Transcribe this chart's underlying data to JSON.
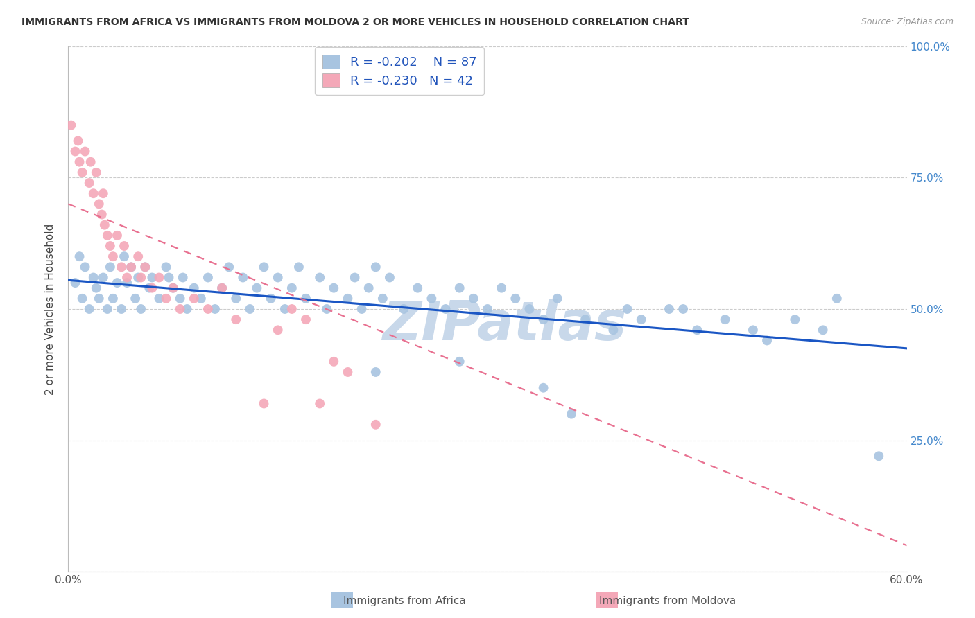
{
  "title": "IMMIGRANTS FROM AFRICA VS IMMIGRANTS FROM MOLDOVA 2 OR MORE VEHICLES IN HOUSEHOLD CORRELATION CHART",
  "source": "Source: ZipAtlas.com",
  "ylabel": "2 or more Vehicles in Household",
  "xlim": [
    0.0,
    0.6
  ],
  "ylim": [
    0.0,
    1.0
  ],
  "legend_africa": "Immigrants from Africa",
  "legend_moldova": "Immigrants from Moldova",
  "r_africa": -0.202,
  "n_africa": 87,
  "r_moldova": -0.23,
  "n_moldova": 42,
  "color_africa": "#a8c4e0",
  "color_moldova": "#f4a8b8",
  "trendline_africa_color": "#1a56c4",
  "trendline_moldova_color": "#e87090",
  "watermark": "ZIPatlas",
  "watermark_color": "#c8d8ea",
  "africa_x": [
    0.005,
    0.008,
    0.01,
    0.012,
    0.015,
    0.018,
    0.02,
    0.022,
    0.025,
    0.028,
    0.03,
    0.032,
    0.035,
    0.038,
    0.04,
    0.042,
    0.045,
    0.048,
    0.05,
    0.052,
    0.055,
    0.058,
    0.06,
    0.065,
    0.07,
    0.072,
    0.075,
    0.08,
    0.082,
    0.085,
    0.09,
    0.095,
    0.1,
    0.105,
    0.11,
    0.115,
    0.12,
    0.125,
    0.13,
    0.135,
    0.14,
    0.145,
    0.15,
    0.155,
    0.16,
    0.165,
    0.17,
    0.18,
    0.185,
    0.19,
    0.2,
    0.205,
    0.21,
    0.215,
    0.22,
    0.225,
    0.23,
    0.24,
    0.25,
    0.26,
    0.27,
    0.28,
    0.29,
    0.3,
    0.31,
    0.32,
    0.33,
    0.34,
    0.35,
    0.37,
    0.39,
    0.4,
    0.41,
    0.43,
    0.45,
    0.47,
    0.49,
    0.5,
    0.52,
    0.54,
    0.34,
    0.28,
    0.36,
    0.22,
    0.44,
    0.55,
    0.58
  ],
  "africa_y": [
    0.55,
    0.6,
    0.52,
    0.58,
    0.5,
    0.56,
    0.54,
    0.52,
    0.56,
    0.5,
    0.58,
    0.52,
    0.55,
    0.5,
    0.6,
    0.55,
    0.58,
    0.52,
    0.56,
    0.5,
    0.58,
    0.54,
    0.56,
    0.52,
    0.58,
    0.56,
    0.54,
    0.52,
    0.56,
    0.5,
    0.54,
    0.52,
    0.56,
    0.5,
    0.54,
    0.58,
    0.52,
    0.56,
    0.5,
    0.54,
    0.58,
    0.52,
    0.56,
    0.5,
    0.54,
    0.58,
    0.52,
    0.56,
    0.5,
    0.54,
    0.52,
    0.56,
    0.5,
    0.54,
    0.58,
    0.52,
    0.56,
    0.5,
    0.54,
    0.52,
    0.5,
    0.54,
    0.52,
    0.5,
    0.54,
    0.52,
    0.5,
    0.48,
    0.52,
    0.48,
    0.46,
    0.5,
    0.48,
    0.5,
    0.46,
    0.48,
    0.46,
    0.44,
    0.48,
    0.46,
    0.35,
    0.4,
    0.3,
    0.38,
    0.5,
    0.52,
    0.22
  ],
  "moldova_x": [
    0.002,
    0.005,
    0.007,
    0.008,
    0.01,
    0.012,
    0.015,
    0.016,
    0.018,
    0.02,
    0.022,
    0.024,
    0.025,
    0.026,
    0.028,
    0.03,
    0.032,
    0.035,
    0.038,
    0.04,
    0.042,
    0.045,
    0.05,
    0.052,
    0.055,
    0.06,
    0.065,
    0.07,
    0.075,
    0.08,
    0.09,
    0.1,
    0.11,
    0.12,
    0.14,
    0.15,
    0.16,
    0.17,
    0.18,
    0.19,
    0.2,
    0.22
  ],
  "moldova_y": [
    0.85,
    0.8,
    0.82,
    0.78,
    0.76,
    0.8,
    0.74,
    0.78,
    0.72,
    0.76,
    0.7,
    0.68,
    0.72,
    0.66,
    0.64,
    0.62,
    0.6,
    0.64,
    0.58,
    0.62,
    0.56,
    0.58,
    0.6,
    0.56,
    0.58,
    0.54,
    0.56,
    0.52,
    0.54,
    0.5,
    0.52,
    0.5,
    0.54,
    0.48,
    0.32,
    0.46,
    0.5,
    0.48,
    0.32,
    0.4,
    0.38,
    0.28
  ],
  "trendline_africa_x0": 0.0,
  "trendline_africa_y0": 0.555,
  "trendline_africa_x1": 0.6,
  "trendline_africa_y1": 0.425,
  "trendline_moldova_x0": 0.0,
  "trendline_moldova_y0": 0.7,
  "trendline_moldova_x1": 0.6,
  "trendline_moldova_y1": 0.05
}
